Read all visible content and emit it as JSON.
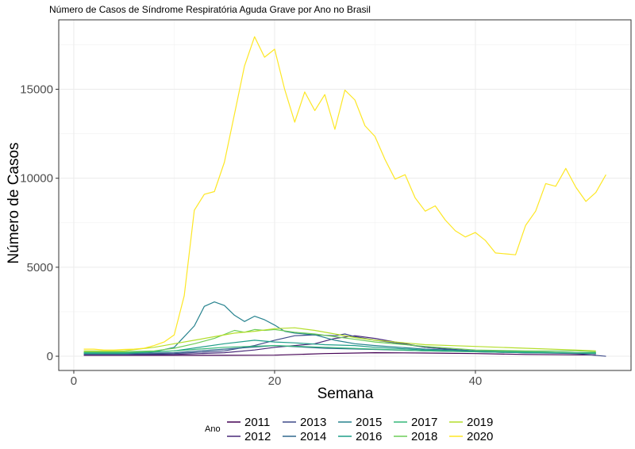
{
  "chart_data": {
    "type": "line",
    "title": "Número de Casos de Síndrome Respiratória Aguda Grave por Ano no Brasil",
    "xlabel": "Semana",
    "ylabel": "Número de Casos",
    "xlim": [
      -1.5,
      55.5
    ],
    "ylim": [
      -800,
      18900
    ],
    "x_ticks": [
      0,
      20,
      40
    ],
    "y_ticks": [
      0,
      5000,
      10000,
      15000
    ],
    "x_tick_labels": [
      "0",
      "20",
      "40"
    ],
    "y_tick_labels": [
      "0",
      "5000",
      "10000",
      "15000"
    ],
    "grid": true,
    "legend": {
      "title": "Ano",
      "position": "bottom",
      "entries": [
        {
          "label": "2011",
          "color": "#440154"
        },
        {
          "label": "2012",
          "color": "#482878"
        },
        {
          "label": "2013",
          "color": "#3E4A89"
        },
        {
          "label": "2014",
          "color": "#31688E"
        },
        {
          "label": "2015",
          "color": "#26828E"
        },
        {
          "label": "2016",
          "color": "#1F9E89"
        },
        {
          "label": "2017",
          "color": "#35B779"
        },
        {
          "label": "2018",
          "color": "#6DCD59"
        },
        {
          "label": "2019",
          "color": "#B4DE2C"
        },
        {
          "label": "2020",
          "color": "#FDE725"
        }
      ]
    },
    "series": [
      {
        "name": "2011",
        "color": "#440154",
        "x": [
          1,
          5,
          10,
          15,
          20,
          25,
          30,
          35,
          40,
          45,
          50,
          52
        ],
        "y": [
          50,
          50,
          50,
          50,
          60,
          150,
          200,
          180,
          150,
          100,
          80,
          70
        ]
      },
      {
        "name": "2012",
        "color": "#482878",
        "x": [
          1,
          5,
          10,
          15,
          18,
          20,
          22,
          24,
          26,
          28,
          30,
          32,
          35,
          40,
          45,
          50,
          52
        ],
        "y": [
          80,
          80,
          100,
          200,
          350,
          500,
          600,
          700,
          1000,
          1150,
          1000,
          800,
          500,
          250,
          200,
          180,
          150
        ]
      },
      {
        "name": "2013",
        "color": "#3E4A89",
        "x": [
          1,
          5,
          10,
          15,
          18,
          20,
          22,
          24,
          26,
          27,
          28,
          30,
          32,
          35,
          40,
          45,
          50,
          53
        ],
        "y": [
          100,
          100,
          150,
          300,
          600,
          900,
          1150,
          1200,
          1150,
          1250,
          1100,
          900,
          750,
          500,
          300,
          250,
          150,
          0
        ]
      },
      {
        "name": "2014",
        "color": "#31688E",
        "x": [
          1,
          5,
          10,
          15,
          20,
          25,
          30,
          35,
          40,
          45,
          50,
          52
        ],
        "y": [
          150,
          150,
          200,
          400,
          600,
          450,
          380,
          300,
          250,
          200,
          150,
          150
        ]
      },
      {
        "name": "2015",
        "color": "#26828E",
        "x": [
          1,
          5,
          8,
          10,
          12,
          13,
          14,
          15,
          16,
          17,
          18,
          19,
          20,
          21,
          22,
          24,
          26,
          28,
          30,
          35,
          40,
          45,
          50,
          52
        ],
        "y": [
          200,
          200,
          250,
          500,
          1700,
          2800,
          3050,
          2850,
          2300,
          1950,
          2250,
          2050,
          1750,
          1400,
          1300,
          1200,
          900,
          700,
          600,
          400,
          300,
          250,
          200,
          200
        ]
      },
      {
        "name": "2016",
        "color": "#1F9E89",
        "x": [
          1,
          5,
          10,
          15,
          18,
          20,
          22,
          25,
          28,
          30,
          35,
          40,
          45,
          50,
          52
        ],
        "y": [
          150,
          150,
          300,
          700,
          900,
          800,
          750,
          650,
          600,
          500,
          350,
          250,
          200,
          200,
          150
        ]
      },
      {
        "name": "2017",
        "color": "#35B779",
        "x": [
          1,
          5,
          10,
          15,
          20,
          25,
          30,
          35,
          40,
          45,
          50,
          52
        ],
        "y": [
          200,
          200,
          300,
          500,
          600,
          500,
          400,
          300,
          250,
          250,
          200,
          200
        ]
      },
      {
        "name": "2018",
        "color": "#6DCD59",
        "x": [
          1,
          5,
          8,
          10,
          12,
          14,
          16,
          17,
          18,
          19,
          20,
          22,
          24,
          26,
          28,
          30,
          35,
          40,
          45,
          50,
          52
        ],
        "y": [
          250,
          250,
          300,
          450,
          700,
          1000,
          1450,
          1350,
          1500,
          1450,
          1500,
          1350,
          1250,
          1100,
          950,
          800,
          550,
          350,
          300,
          300,
          250
        ]
      },
      {
        "name": "2019",
        "color": "#B4DE2C",
        "x": [
          1,
          5,
          8,
          10,
          12,
          14,
          16,
          18,
          20,
          22,
          24,
          26,
          28,
          30,
          35,
          40,
          45,
          50,
          52
        ],
        "y": [
          300,
          300,
          500,
          700,
          900,
          1100,
          1300,
          1400,
          1550,
          1600,
          1450,
          1250,
          1050,
          900,
          650,
          550,
          450,
          350,
          300
        ]
      },
      {
        "name": "2020",
        "color": "#FDE725",
        "x": [
          1,
          2,
          3,
          4,
          5,
          6,
          7,
          8,
          9,
          10,
          11,
          12,
          13,
          14,
          15,
          16,
          17,
          18,
          19,
          20,
          21,
          22,
          23,
          24,
          25,
          26,
          27,
          28,
          29,
          30,
          31,
          32,
          33,
          34,
          35,
          36,
          37,
          38,
          39,
          40,
          41,
          42,
          43,
          44,
          45,
          46,
          47,
          48,
          49,
          50,
          51,
          52,
          53
        ],
        "y": [
          400,
          400,
          350,
          350,
          380,
          400,
          450,
          600,
          800,
          1200,
          3400,
          8200,
          9100,
          9250,
          10900,
          13600,
          16300,
          17950,
          16800,
          17250,
          15000,
          13150,
          14850,
          13800,
          14700,
          12750,
          14950,
          14400,
          12950,
          12350,
          11050,
          9950,
          10200,
          8900,
          8150,
          8450,
          7650,
          7050,
          6700,
          6950,
          6500,
          5800,
          5750,
          5700,
          7350,
          8150,
          9700,
          9550,
          10550,
          9500,
          8700,
          9200,
          10200
        ]
      }
    ]
  }
}
